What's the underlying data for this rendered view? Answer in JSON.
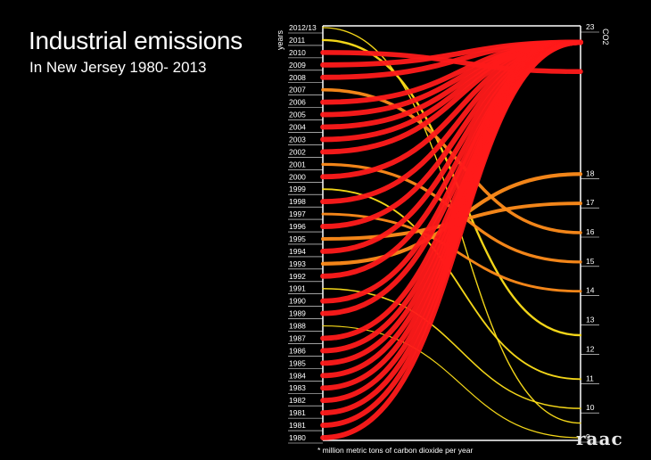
{
  "title": "Industrial emissions",
  "subtitle": "In New Jersey 1980- 2013",
  "footnote": "* million metric tons of carbon dioxide per year",
  "logo": "raac",
  "chart_data": {
    "type": "slope",
    "left_axis_label": "years",
    "right_axis_label": "CO2",
    "left_labels": [
      "2012/13",
      "2011",
      "2010",
      "2009",
      "2008",
      "2007",
      "2006",
      "2005",
      "2004",
      "2003",
      "2002",
      "2001",
      "2000",
      "1999",
      "1998",
      "1997",
      "1996",
      "1995",
      "1994",
      "1993",
      "1992",
      "1991",
      "1990",
      "1989",
      "1988",
      "1987",
      "1986",
      "1985",
      "1984",
      "1983",
      "1982",
      "1981",
      "1981",
      "1980"
    ],
    "right_ticks": [
      23,
      18,
      17,
      16,
      15,
      14,
      13,
      12,
      11,
      10,
      9
    ],
    "right_range": [
      9,
      23
    ],
    "colors": {
      "high": "#ff1a1a",
      "mid": "#ff8c1a",
      "low": "#ffe01a"
    },
    "series": [
      {
        "year": "2012/13",
        "value": 9.5
      },
      {
        "year": "2011",
        "value": 12.5
      },
      {
        "year": "2010",
        "value": 21.5
      },
      {
        "year": "2009",
        "value": 22.5
      },
      {
        "year": "2008",
        "value": 22.5
      },
      {
        "year": "2007",
        "value": 16.0
      },
      {
        "year": "2006",
        "value": 22.5
      },
      {
        "year": "2005",
        "value": 22.5
      },
      {
        "year": "2004",
        "value": 22.5
      },
      {
        "year": "2003",
        "value": 22.5
      },
      {
        "year": "2002",
        "value": 22.5
      },
      {
        "year": "2001",
        "value": 15.0
      },
      {
        "year": "2000",
        "value": 22.5
      },
      {
        "year": "1999",
        "value": 11.0
      },
      {
        "year": "1998",
        "value": 22.5
      },
      {
        "year": "1997",
        "value": 14.0
      },
      {
        "year": "1996",
        "value": 22.5
      },
      {
        "year": "1995",
        "value": 17.0
      },
      {
        "year": "1994",
        "value": 22.5
      },
      {
        "year": "1993",
        "value": 18.0
      },
      {
        "year": "1992",
        "value": 22.5
      },
      {
        "year": "1991",
        "value": 10.0
      },
      {
        "year": "1990",
        "value": 22.5
      },
      {
        "year": "1989",
        "value": 22.5
      },
      {
        "year": "1988",
        "value": 9.0
      },
      {
        "year": "1987",
        "value": 22.5
      },
      {
        "year": "1986",
        "value": 22.5
      },
      {
        "year": "1985",
        "value": 22.5
      },
      {
        "year": "1984",
        "value": 22.5
      },
      {
        "year": "1983",
        "value": 22.5
      },
      {
        "year": "1982",
        "value": 22.5
      },
      {
        "year": "1981",
        "value": 22.5
      },
      {
        "year": "1981",
        "value": 22.5
      },
      {
        "year": "1980",
        "value": 22.5
      }
    ]
  }
}
